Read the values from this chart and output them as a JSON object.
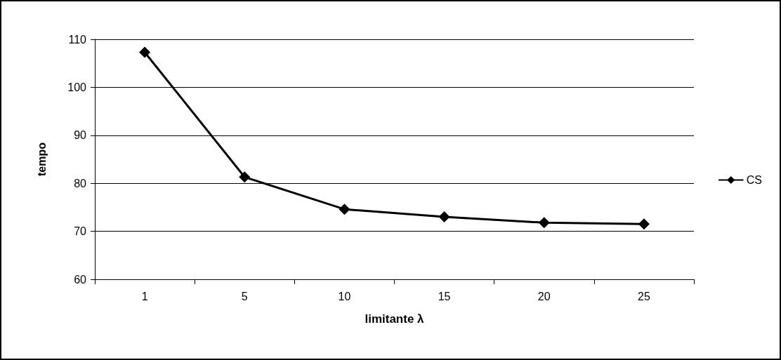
{
  "chart_data": {
    "type": "line",
    "xlabel": "limitante λ",
    "ylabel": "tempo",
    "categories": [
      "1",
      "5",
      "10",
      "15",
      "20",
      "25"
    ],
    "series": [
      {
        "name": "CS",
        "color": "#000000",
        "values": [
          107.3,
          81.3,
          74.6,
          73.0,
          71.8,
          71.5
        ]
      }
    ],
    "ylim": [
      60,
      110
    ],
    "yticks": [
      60,
      70,
      80,
      90,
      100,
      110
    ],
    "grid": "y",
    "legend": "right",
    "marker": "diamond",
    "line_style": "solid"
  }
}
